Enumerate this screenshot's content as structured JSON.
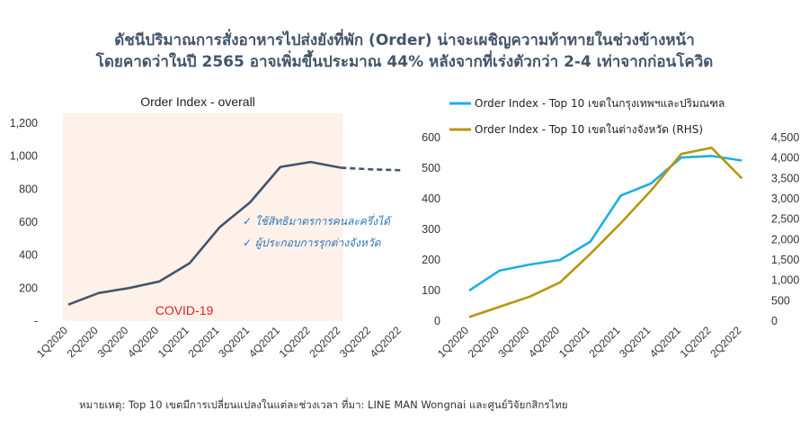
{
  "title_line1": "ดัชนีปริมาณการสั่งอาหารไปส่งยังที่พัก (Order) น่าจะเผชิญความท้าทายในช่วงข้างหน้า",
  "title_line2": "โดยคาดว่าในปี 2565 อาจเพิ่มขึ้นประมาณ 44% หลังจากที่เร่งตัวกว่า 2-4 เท่าจากก่อนโควิด",
  "footnote": "หมายเหตุ: Top 10 เขตมีการเปลี่ยนแปลงในแต่ละช่วงเวลา ที่มา: LINE MAN Wongnai และศูนย์วิจัยกสิกรไทย",
  "colors": {
    "overall": "#44546a",
    "bkk": "#1eaee4",
    "prov": "#b8960c",
    "covid_band": "#fdf1ea",
    "covid_text": "#e02020",
    "note_text": "#2e75b6"
  },
  "chart_data": [
    {
      "type": "line",
      "title": "Order Index - overall",
      "categories": [
        "1Q2020",
        "2Q2020",
        "3Q2020",
        "4Q2020",
        "1Q2021",
        "2Q2021",
        "3Q2021",
        "4Q2021",
        "1Q2022",
        "2Q2022",
        "3Q2022",
        "4Q2022"
      ],
      "series": [
        {
          "values": [
            100,
            170,
            200,
            240,
            350,
            570,
            720,
            935,
            965,
            930,
            null,
            null
          ],
          "style": "solid"
        },
        {
          "values": [
            null,
            null,
            null,
            null,
            null,
            null,
            null,
            null,
            null,
            930,
            920,
            915
          ],
          "style": "dashed"
        }
      ],
      "ylim": [
        0,
        1200
      ],
      "yticks": [
        "-",
        "200",
        "400",
        "600",
        "800",
        "1,000",
        "1,200"
      ],
      "annotation_covid": "COVID-19",
      "annotation_notes": [
        "✓ ใช้สิทธิมาตรการคนละครึ่งได้",
        "✓ ผู้ประกอบการรุกต่างจังหวัด"
      ],
      "covid_band": [
        "1Q2020",
        "2Q2022"
      ]
    },
    {
      "type": "line",
      "categories": [
        "1Q2020",
        "2Q2020",
        "3Q2020",
        "4Q2020",
        "1Q2021",
        "2Q2021",
        "3Q2021",
        "4Q2021",
        "1Q2022",
        "2Q2022"
      ],
      "series": [
        {
          "name": "Order Index - Top 10 เขตในกรุงเทพฯและปริมณฑล",
          "axis": "left",
          "values": [
            100,
            165,
            185,
            200,
            260,
            410,
            450,
            535,
            540,
            525
          ]
        },
        {
          "name": "Order Index - Top 10 เขตในต่างจังหวัด (RHS)",
          "axis": "right",
          "values": [
            100,
            350,
            600,
            950,
            1650,
            2400,
            3200,
            4100,
            4250,
            3500
          ]
        }
      ],
      "ylim_left": [
        0,
        600
      ],
      "yticks_left": [
        "0",
        "100",
        "200",
        "300",
        "400",
        "500",
        "600"
      ],
      "ylim_right": [
        0,
        4500
      ],
      "yticks_right": [
        "0",
        "500",
        "1,000",
        "1,500",
        "2,000",
        "2,500",
        "3,000",
        "3,500",
        "4,000",
        "4,500"
      ]
    }
  ]
}
